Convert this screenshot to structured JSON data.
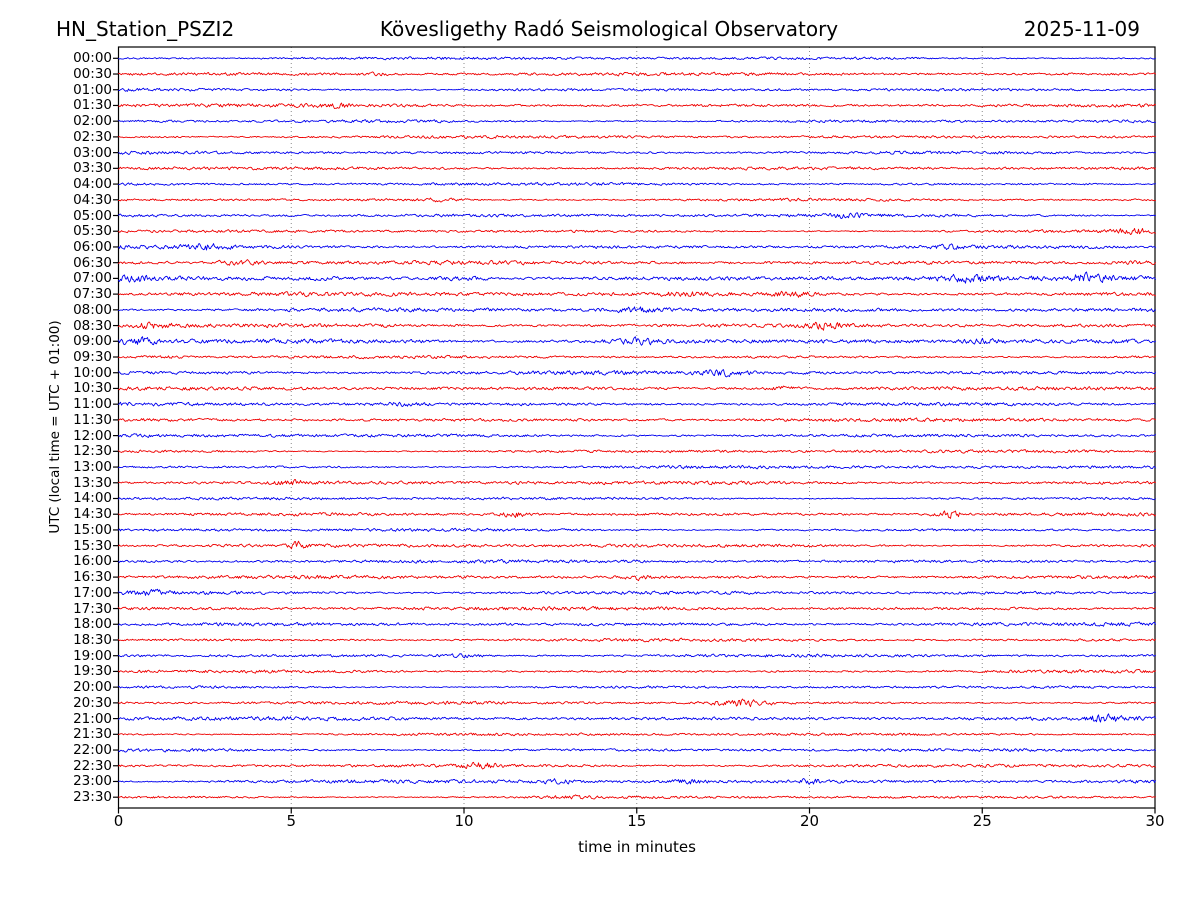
{
  "header": {
    "station": "HN_Station_PSZI2",
    "observatory": "Kövesligethy Radó Seismological Observatory",
    "date": "2025-11-09"
  },
  "chart_data": {
    "type": "line",
    "subtype": "helicorder-dayplot",
    "station": "HN_Station_PSZI2",
    "title": "Kövesligethy Radó Seismological Observatory",
    "date": "2025-11-09",
    "xlabel": "time in minutes",
    "ylabel": "UTC (local time = UTC + 01:00)",
    "xlim": [
      0,
      30
    ],
    "xticks": [
      0,
      5,
      10,
      15,
      20,
      25,
      30
    ],
    "minutes_per_row": 30,
    "grid": "vertical-dotted-at-5-minute-intervals",
    "grid_color": "#8a8a8a",
    "axis_color": "#000000",
    "trace_color_hour": "#0000ee",
    "trace_color_half_hour": "#ee0000",
    "rows": [
      {
        "label": "00:00",
        "color": "#0000ee",
        "amp": 1.0
      },
      {
        "label": "00:30",
        "color": "#ee0000",
        "amp": 1.0
      },
      {
        "label": "01:00",
        "color": "#0000ee",
        "amp": 1.0
      },
      {
        "label": "01:30",
        "color": "#ee0000",
        "amp": 1.0
      },
      {
        "label": "02:00",
        "color": "#0000ee",
        "amp": 1.1
      },
      {
        "label": "02:30",
        "color": "#ee0000",
        "amp": 1.0
      },
      {
        "label": "03:00",
        "color": "#0000ee",
        "amp": 1.0
      },
      {
        "label": "03:30",
        "color": "#ee0000",
        "amp": 1.0
      },
      {
        "label": "04:00",
        "color": "#0000ee",
        "amp": 1.0
      },
      {
        "label": "04:30",
        "color": "#ee0000",
        "amp": 1.0
      },
      {
        "label": "05:00",
        "color": "#0000ee",
        "amp": 1.0
      },
      {
        "label": "05:30",
        "color": "#ee0000",
        "amp": 1.05
      },
      {
        "label": "06:00",
        "color": "#0000ee",
        "amp": 1.1
      },
      {
        "label": "06:30",
        "color": "#ee0000",
        "amp": 1.1
      },
      {
        "label": "07:00",
        "color": "#0000ee",
        "amp": 1.35
      },
      {
        "label": "07:30",
        "color": "#ee0000",
        "amp": 1.2
      },
      {
        "label": "08:00",
        "color": "#0000ee",
        "amp": 1.3
      },
      {
        "label": "08:30",
        "color": "#ee0000",
        "amp": 1.2
      },
      {
        "label": "09:00",
        "color": "#0000ee",
        "amp": 1.3
      },
      {
        "label": "09:30",
        "color": "#ee0000",
        "amp": 1.15
      },
      {
        "label": "10:00",
        "color": "#0000ee",
        "amp": 1.1
      },
      {
        "label": "10:30",
        "color": "#ee0000",
        "amp": 1.05
      },
      {
        "label": "11:00",
        "color": "#0000ee",
        "amp": 1.05
      },
      {
        "label": "11:30",
        "color": "#ee0000",
        "amp": 1.0
      },
      {
        "label": "12:00",
        "color": "#0000ee",
        "amp": 1.0
      },
      {
        "label": "12:30",
        "color": "#ee0000",
        "amp": 1.0
      },
      {
        "label": "13:00",
        "color": "#0000ee",
        "amp": 1.0
      },
      {
        "label": "13:30",
        "color": "#ee0000",
        "amp": 1.0
      },
      {
        "label": "14:00",
        "color": "#0000ee",
        "amp": 1.0
      },
      {
        "label": "14:30",
        "color": "#ee0000",
        "amp": 1.0
      },
      {
        "label": "15:00",
        "color": "#0000ee",
        "amp": 1.0
      },
      {
        "label": "15:30",
        "color": "#ee0000",
        "amp": 1.0
      },
      {
        "label": "16:00",
        "color": "#0000ee",
        "amp": 1.0
      },
      {
        "label": "16:30",
        "color": "#ee0000",
        "amp": 1.0
      },
      {
        "label": "17:00",
        "color": "#0000ee",
        "amp": 1.15
      },
      {
        "label": "17:30",
        "color": "#ee0000",
        "amp": 1.05
      },
      {
        "label": "18:00",
        "color": "#0000ee",
        "amp": 1.1
      },
      {
        "label": "18:30",
        "color": "#ee0000",
        "amp": 1.15
      },
      {
        "label": "19:00",
        "color": "#0000ee",
        "amp": 1.2
      },
      {
        "label": "19:30",
        "color": "#ee0000",
        "amp": 1.1
      },
      {
        "label": "20:00",
        "color": "#0000ee",
        "amp": 1.05
      },
      {
        "label": "20:30",
        "color": "#ee0000",
        "amp": 1.05
      },
      {
        "label": "21:00",
        "color": "#0000ee",
        "amp": 1.1
      },
      {
        "label": "21:30",
        "color": "#ee0000",
        "amp": 1.05
      },
      {
        "label": "22:00",
        "color": "#0000ee",
        "amp": 1.1
      },
      {
        "label": "22:30",
        "color": "#ee0000",
        "amp": 1.15
      },
      {
        "label": "23:00",
        "color": "#0000ee",
        "amp": 1.1
      },
      {
        "label": "23:30",
        "color": "#ee0000",
        "amp": 1.0
      }
    ],
    "events": [
      {
        "row": "00:30",
        "minute": 7.5,
        "gain": 0.8,
        "width": 0.3
      },
      {
        "row": "01:30",
        "minute": 6.3,
        "gain": 0.8,
        "width": 0.3
      },
      {
        "row": "04:00",
        "minute": 28.2,
        "gain": 0.9,
        "width": 0.4
      },
      {
        "row": "04:30",
        "minute": 9.3,
        "gain": 1.5,
        "width": 0.4
      },
      {
        "row": "05:00",
        "minute": 21.0,
        "gain": 0.9,
        "width": 0.3
      },
      {
        "row": "05:30",
        "minute": 29.4,
        "gain": 2.0,
        "width": 0.4
      },
      {
        "row": "06:00",
        "minute": 2.5,
        "gain": 1.0,
        "width": 0.4
      },
      {
        "row": "06:00",
        "minute": 24.0,
        "gain": 0.9,
        "width": 0.3
      },
      {
        "row": "06:30",
        "minute": 3.5,
        "gain": 1.5,
        "width": 0.5
      },
      {
        "row": "06:30",
        "minute": 29.5,
        "gain": 1.2,
        "width": 0.3
      },
      {
        "row": "07:00",
        "minute": 0.5,
        "gain": 1.2,
        "width": 0.4
      },
      {
        "row": "07:00",
        "minute": 10.0,
        "gain": 1.0,
        "width": 0.6
      },
      {
        "row": "07:00",
        "minute": 24.5,
        "gain": 1.3,
        "width": 0.5
      },
      {
        "row": "07:00",
        "minute": 28.0,
        "gain": 1.2,
        "width": 0.4
      },
      {
        "row": "07:30",
        "minute": 16.5,
        "gain": 1.0,
        "width": 0.5
      },
      {
        "row": "07:30",
        "minute": 19.5,
        "gain": 1.4,
        "width": 0.4
      },
      {
        "row": "08:00",
        "minute": 15.0,
        "gain": 1.4,
        "width": 0.6
      },
      {
        "row": "08:30",
        "minute": 1.0,
        "gain": 1.2,
        "width": 0.4
      },
      {
        "row": "08:30",
        "minute": 20.5,
        "gain": 1.5,
        "width": 0.4
      },
      {
        "row": "09:00",
        "minute": 0.5,
        "gain": 1.4,
        "width": 0.4
      },
      {
        "row": "09:00",
        "minute": 15.0,
        "gain": 1.4,
        "width": 0.5
      },
      {
        "row": "09:00",
        "minute": 25.0,
        "gain": 1.1,
        "width": 0.4
      },
      {
        "row": "09:30",
        "minute": 1.2,
        "gain": 1.4,
        "width": 0.5
      },
      {
        "row": "10:00",
        "minute": 17.5,
        "gain": 1.6,
        "width": 0.4
      },
      {
        "row": "10:30",
        "minute": 19.3,
        "gain": 1.4,
        "width": 0.4
      },
      {
        "row": "11:00",
        "minute": 8.0,
        "gain": 0.9,
        "width": 0.4
      },
      {
        "row": "13:30",
        "minute": 5.0,
        "gain": 1.2,
        "width": 0.3
      },
      {
        "row": "14:30",
        "minute": 11.5,
        "gain": 2.4,
        "width": 0.35
      },
      {
        "row": "14:30",
        "minute": 24.0,
        "gain": 3.0,
        "width": 0.3
      },
      {
        "row": "15:30",
        "minute": 5.2,
        "gain": 2.0,
        "width": 0.15
      },
      {
        "row": "16:30",
        "minute": 15.0,
        "gain": 1.4,
        "width": 0.3
      },
      {
        "row": "17:00",
        "minute": 1.0,
        "gain": 1.1,
        "width": 0.4
      },
      {
        "row": "19:00",
        "minute": 10.0,
        "gain": 1.3,
        "width": 0.5
      },
      {
        "row": "20:30",
        "minute": 18.0,
        "gain": 2.8,
        "width": 0.6
      },
      {
        "row": "21:00",
        "minute": 28.5,
        "gain": 1.4,
        "width": 0.4
      },
      {
        "row": "22:30",
        "minute": 10.5,
        "gain": 1.3,
        "width": 0.4
      },
      {
        "row": "23:00",
        "minute": 12.7,
        "gain": 1.1,
        "width": 0.3
      },
      {
        "row": "23:00",
        "minute": 16.5,
        "gain": 1.2,
        "width": 0.3
      },
      {
        "row": "23:00",
        "minute": 20.0,
        "gain": 2.2,
        "width": 0.15
      },
      {
        "row": "23:30",
        "minute": 13.0,
        "gain": 1.0,
        "width": 0.4
      }
    ]
  }
}
